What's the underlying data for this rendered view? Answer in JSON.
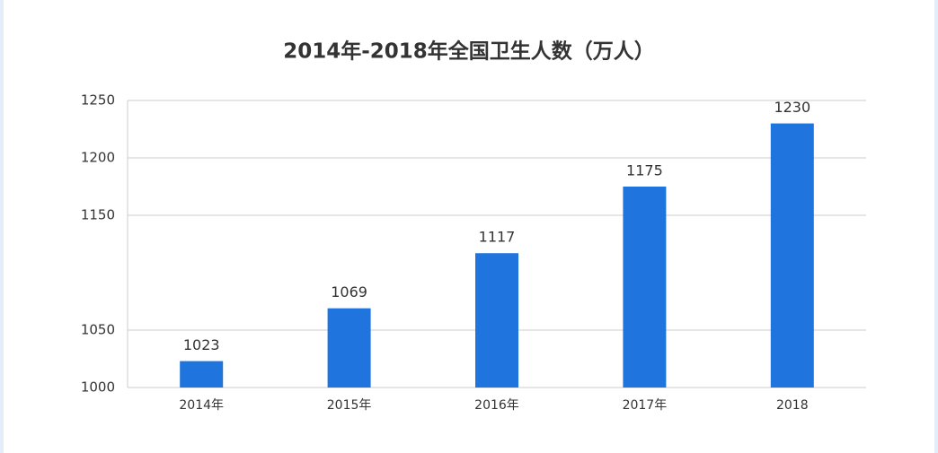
{
  "chart_data": {
    "type": "bar",
    "title": "2014年-2018年全国卫生人数（万人）",
    "categories": [
      "2014年",
      "2015年",
      "2016年",
      "2017年",
      "2018"
    ],
    "values": [
      1023,
      1069,
      1117,
      1175,
      1230
    ],
    "color": "#1f74de",
    "ylim": [
      1000,
      1250
    ],
    "yticks": [
      1000,
      1050,
      1150,
      1200,
      1250
    ],
    "grid": true
  }
}
